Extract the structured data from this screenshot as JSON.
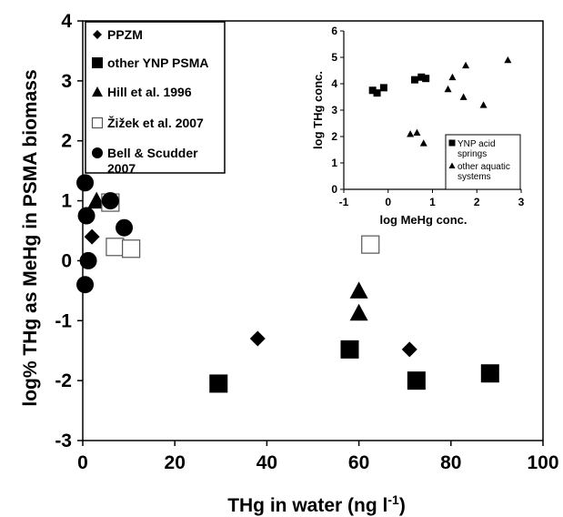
{
  "chart_data": [
    {
      "type": "scatter",
      "title": "",
      "xlabel": "THg in water (ng l",
      "xlabel_sup": "-1",
      "xlabel_end": ")",
      "ylabel": "log% THg as MeHg in PSMA biomass",
      "xlim": [
        0,
        100
      ],
      "ylim": [
        -3,
        4
      ],
      "xticks": [
        "0",
        "20",
        "40",
        "60",
        "80",
        "100"
      ],
      "yticks": [
        "-3",
        "-2",
        "-1",
        "0",
        "1",
        "2",
        "3",
        "4"
      ],
      "legend_position": "top-left",
      "series": [
        {
          "name": "PPZM",
          "marker": "diamond",
          "x": [
            2,
            38,
            71
          ],
          "y": [
            0.4,
            -1.3,
            -1.48
          ]
        },
        {
          "name": "other YNP PSMA",
          "marker": "square",
          "x": [
            29.5,
            58,
            72.5,
            88.5
          ],
          "y": [
            -2.05,
            -1.48,
            -2.0,
            -1.88
          ]
        },
        {
          "name": "Hill et al. 1996",
          "marker": "triangle",
          "x": [
            3,
            60,
            60
          ],
          "y": [
            1.0,
            -0.5,
            -0.87
          ]
        },
        {
          "name": "Žižek et al. 2007",
          "marker": "open-square",
          "x": [
            6,
            7,
            10.5,
            62.5
          ],
          "y": [
            0.97,
            0.23,
            0.2,
            0.27
          ]
        },
        {
          "name": "Bell & Scudder",
          "name_line2": "2007",
          "marker": "circle",
          "x": [
            0.5,
            0.8,
            1.2,
            0.5,
            6,
            9
          ],
          "y": [
            1.3,
            0.75,
            0.0,
            -0.4,
            1.0,
            0.55
          ]
        }
      ]
    },
    {
      "type": "scatter",
      "title": "",
      "xlabel": "log MeHg conc.",
      "ylabel": "log THg conc.",
      "xlim": [
        -1,
        3
      ],
      "ylim": [
        0,
        6
      ],
      "xticks": [
        "-1",
        "0",
        "1",
        "2",
        "3"
      ],
      "yticks": [
        "0",
        "1",
        "2",
        "3",
        "4",
        "5",
        "6"
      ],
      "legend_position": "bottom-right",
      "series": [
        {
          "name": "YNP acid",
          "name_line2": "springs",
          "marker": "square",
          "x": [
            -0.35,
            -0.25,
            -0.1,
            0.6,
            0.75,
            0.85
          ],
          "y": [
            3.75,
            3.65,
            3.85,
            4.15,
            4.25,
            4.2
          ]
        },
        {
          "name": "other aquatic",
          "name_line2": "systems",
          "marker": "triangle",
          "x": [
            0.5,
            0.65,
            0.8,
            1.35,
            1.45,
            1.7,
            1.75,
            2.15,
            2.7
          ],
          "y": [
            2.1,
            2.15,
            1.75,
            3.8,
            4.25,
            3.5,
            4.7,
            3.2,
            4.9
          ]
        }
      ]
    }
  ]
}
